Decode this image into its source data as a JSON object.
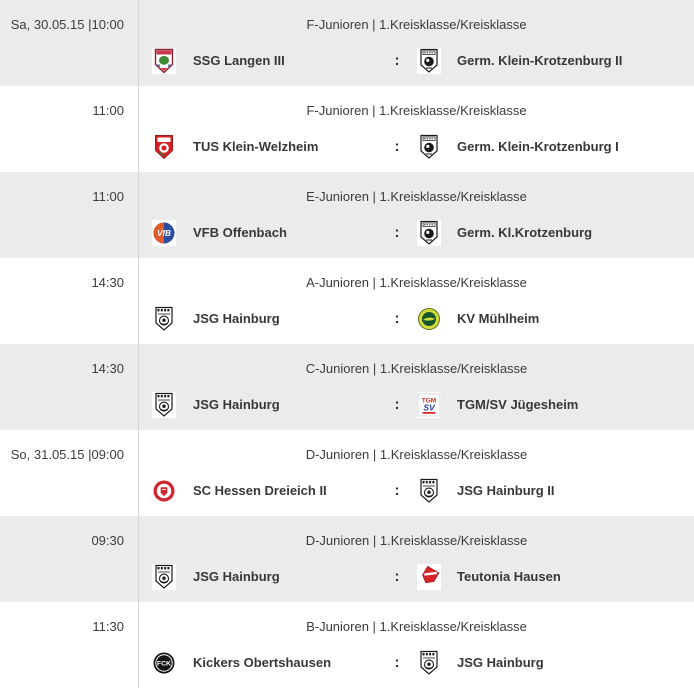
{
  "widget": {
    "type": "match-fixture-list",
    "separator_glyph": ":"
  },
  "colors": {
    "row_bg": "#ffffff",
    "row_alt_bg": "#ebebeb",
    "divider": "#d5d5d5",
    "text": "#3c3c3c"
  },
  "rows": [
    {
      "datetime": "Sa, 30.05.15 |10:00",
      "category": "F-Junioren | 1.Kreisklasse/Kreisklasse",
      "separator": ":",
      "home": {
        "name": "SSG Langen III",
        "logo": "ssg-langen-crest"
      },
      "away": {
        "name": "Germ. Klein-Krotzenburg II",
        "logo": "germania-klein-krotzenburg-crest"
      }
    },
    {
      "datetime": "11:00",
      "category": "F-Junioren | 1.Kreisklasse/Kreisklasse",
      "separator": ":",
      "home": {
        "name": "TUS Klein-Welzheim",
        "logo": "tus-klein-welzheim-crest"
      },
      "away": {
        "name": "Germ. Klein-Krotzenburg I",
        "logo": "germania-klein-krotzenburg-crest"
      }
    },
    {
      "datetime": "11:00",
      "category": "E-Junioren | 1.Kreisklasse/Kreisklasse",
      "separator": ":",
      "home": {
        "name": "VFB Offenbach",
        "logo": "vfb-offenbach-crest"
      },
      "away": {
        "name": "Germ. Kl.Krotzenburg",
        "logo": "germania-klein-krotzenburg-crest"
      }
    },
    {
      "datetime": "14:30",
      "category": "A-Junioren | 1.Kreisklasse/Kreisklasse",
      "separator": ":",
      "home": {
        "name": "JSG Hainburg",
        "logo": "jsg-hainburg-crest"
      },
      "away": {
        "name": "KV Mühlheim",
        "logo": "kv-muehlheim-crest"
      }
    },
    {
      "datetime": "14:30",
      "category": "C-Junioren | 1.Kreisklasse/Kreisklasse",
      "separator": ":",
      "home": {
        "name": "JSG Hainburg",
        "logo": "jsg-hainburg-crest"
      },
      "away": {
        "name": "TGM/SV Jügesheim",
        "logo": "tgm-sv-juegesheim-crest"
      }
    },
    {
      "datetime": "So, 31.05.15 |09:00",
      "category": "D-Junioren | 1.Kreisklasse/Kreisklasse",
      "separator": ":",
      "home": {
        "name": "SC Hessen Dreieich II",
        "logo": "sc-hessen-dreieich-crest"
      },
      "away": {
        "name": "JSG Hainburg II",
        "logo": "jsg-hainburg-crest"
      }
    },
    {
      "datetime": "09:30",
      "category": "D-Junioren | 1.Kreisklasse/Kreisklasse",
      "separator": ":",
      "home": {
        "name": "JSG Hainburg",
        "logo": "jsg-hainburg-crest"
      },
      "away": {
        "name": "Teutonia Hausen",
        "logo": "teutonia-hausen-crest"
      }
    },
    {
      "datetime": "11:30",
      "category": "B-Junioren | 1.Kreisklasse/Kreisklasse",
      "separator": ":",
      "home": {
        "name": "Kickers Obertshausen",
        "logo": "kickers-obertshausen-crest"
      },
      "away": {
        "name": "JSG Hainburg",
        "logo": "jsg-hainburg-crest"
      }
    }
  ]
}
